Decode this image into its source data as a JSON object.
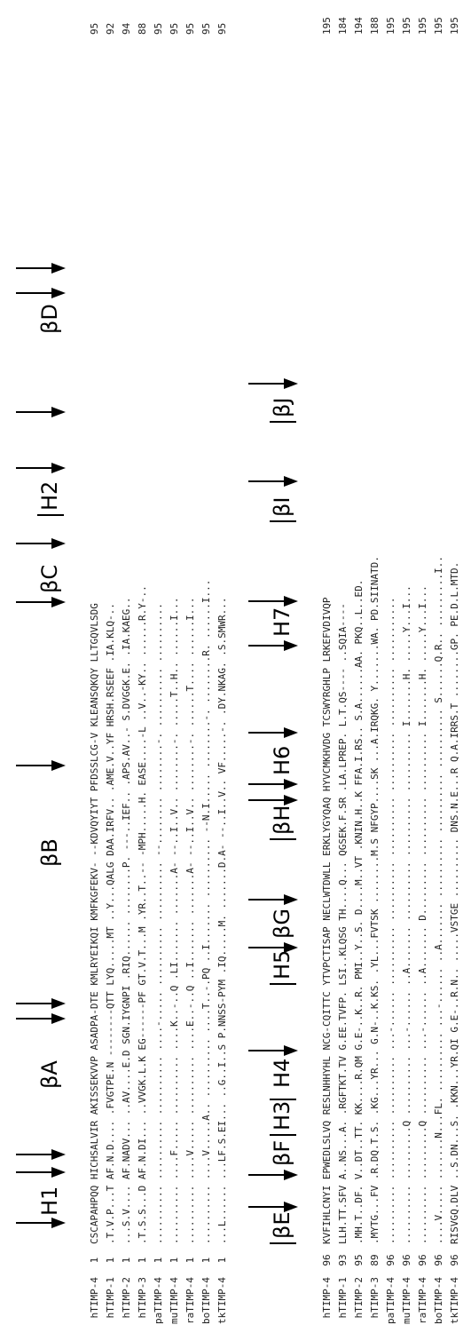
{
  "alignment": {
    "block1": {
      "labels": {
        "H1": "H1",
        "betaA": "βA",
        "betaB": "βB",
        "betaC": "βC",
        "H2": "H2",
        "betaD": "βD"
      },
      "rows": [
        {
          "name": "hTIMP-4",
          "start": "1",
          "seq": "CSCAPAHPQQ HICHSALVIR AKISSEKVVP ASADPA-DTE KMLRYEIKQI KMFKGFEKV- --KDVQYIYT PFDSSLCG-V KLEANSQKQY LLTGQVLSDG",
          "end": "95"
        },
        {
          "name": "hTIMP-1",
          "start": "1",
          "seq": ".T.V.P...T AF.N.D.... .FVGTPE.N --------QTT LYQ.....MT ..Y...QALG DAA.IRFV.. .AME.V..YF HRSH.RSEEF .IA.KLQ-..",
          "end": "92"
        },
        {
          "name": "hTIMP-2",
          "start": "1",
          "seq": "...S.V.... AF.NADV... ..AV....E.D SGN.IYGNPI .RIQ...... ........P. ---..IEF.. .APS.AV..- S.DVGGK.E. .IA.KAEG..",
          "end": "94"
        },
        {
          "name": "hTIMP-3",
          "start": "1",
          "seq": ".T.S.S...D AF.N.DI... ..VVGK.L.K EG------PF GT.V.T...M .YR..T..-- -MPH.....H. EASE....-L ..V..-KY.. ......R.Y-..",
          "end": "88"
        },
        {
          "name": "paTIMP-4",
          "start": "1",
          "seq": ".......... .......... .......... ....-..... .......... .......... --........ ........-. .......... ..........",
          "end": "95"
        },
        {
          "name": "muTIMP-4",
          "start": "1",
          "seq": ".......... ....F..... .......... ....K..-..Q .LI....... .......A- --..I..V.. ........-. .....T..H.. ......I...",
          "end": "95"
        },
        {
          "name": "raTIMP-4",
          "start": "1",
          "seq": ".......... ....V..... .......... ....E..-..Q ..I....... .......A- --..I..V.. ........-. ......T.... ......I...",
          "end": "95"
        },
        {
          "name": "boTIMP-4",
          "start": "1",
          "seq": ".......... ....V.....A.. .......... ....T..-.PQ ..I....... .......... --N.I..... ........-. ........R. ......I...",
          "end": "95"
        },
        {
          "name": "tkTIMP-4",
          "start": "1",
          "seq": "...L...... ...LF.S.EI... ..G..I..S P.NNSS-PYM .IQ.....M. .......D.A- --..I..V.. VF.....-. .DY.NKAG. .S.SMWR...",
          "end": "95"
        }
      ]
    },
    "block2": {
      "labels": {
        "betaE": "βE",
        "betaF": "βF",
        "H3": "H3",
        "H4": "H4",
        "H5": "H5",
        "betaG": "βG",
        "betaH": "βH",
        "H6": "H6",
        "H7": "H7",
        "betaI": "βI",
        "betaJ": "βJ"
      },
      "rows": [
        {
          "name": "hTIMP-4",
          "start": "96",
          "seq": "KVFIHLCNYI EPWEDLSLVQ RESLNHHYHL NCG-CQITTC YTVPCTISAP NECLWTDWLL ERKLYGYQAQ HYVCMKHVDG TCSWYRGHLP LRKEFVDIVQP",
          "end": "195"
        },
        {
          "name": "hTIMP-1",
          "start": "93",
          "seq": "LLH.TT.SFV A..NS...A. .RGFTKT.TV G.EE.TVFP. LSI..KLQSG TH....Q... QGSEK.F.SR .LA.LPREP. L.T.QS---- ..SQIA----",
          "end": "184"
        },
        {
          "name": "hTIMP-2",
          "start": "95",
          "seq": ".MH.T..DF. V..DT..TT. KK....R.QM G.E-..K..R. PMI..Y..S. D....M..VT .KNIN.H..K FFA.I.RS.. S.A......AA. PKQ..L..ED.",
          "end": "194"
        },
        {
          "name": "hTIMP-3",
          "start": "89",
          "seq": ".MYTG...FV .R.DQ.T.S. .KG...YR... G.N-..K.KS. .YL...FVTSK ........M.S NFGYP....SK ...A.IRQKG. Y.......WA. PD.SIINATD.",
          "end": "188"
        },
        {
          "name": "paTIMP-4",
          "start": "96",
          "seq": ".......... .......... .......... ...-...... .......... .......... .......... .......... .......... ...........",
          "end": "195"
        },
        {
          "name": "muTIMP-4",
          "start": "96",
          "seq": ".......... .........Q .......... ...-...... ..A....... .......... .......... .......... I.......H. .....Y...I...",
          "end": "195"
        },
        {
          "name": "raTIMP-4",
          "start": "96",
          "seq": ".......... .........Q .......... ...-...... ..A....... D......... .......... .......... I.......H. .....Y...I...",
          "end": "195"
        },
        {
          "name": "boTIMP-4",
          "start": "96",
          "seq": "....V..... .......N...FL. .......... ...-...... ..A....... .......... .......... .......... S......Q.R.. .........I..",
          "end": "195"
        },
        {
          "name": "tkTIMP-4",
          "start": "96",
          "seq": "RISVGQ.DLV ..S.DN...S. .KKN...YR.QI G.E-..R.N.. .....VSTGE .......... DNS.N.E...R Q.A.IRRS.T ........GP. PE.D.L.MTD.",
          "end": "195"
        }
      ]
    }
  }
}
